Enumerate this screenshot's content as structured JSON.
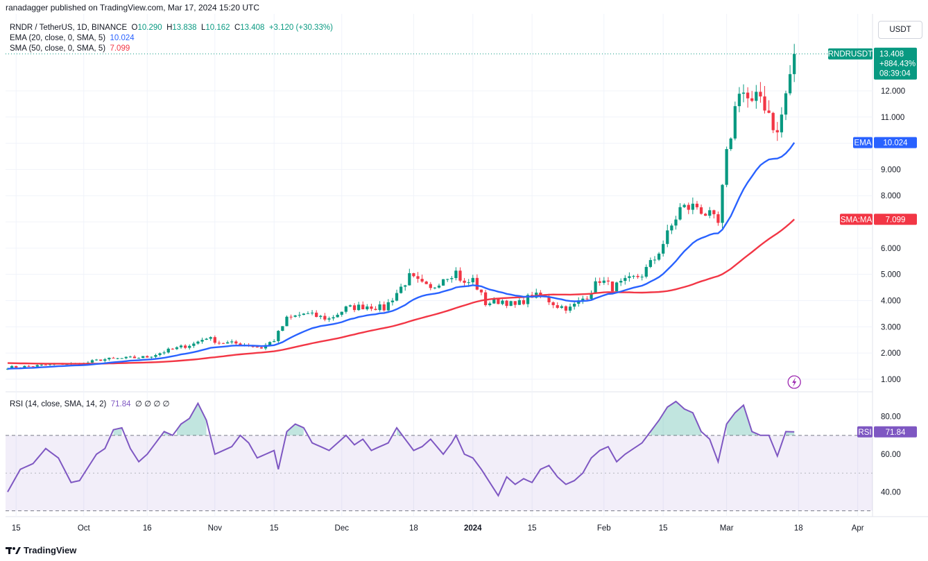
{
  "header": {
    "published": "ranadagger published on TradingView.com, Mar 17, 2024 15:20 UTC",
    "currency_button": "USDT"
  },
  "legend": {
    "symbol": "RNDR / TetherUS, 1D, BINANCE",
    "open_label": "O",
    "open": "10.290",
    "high_label": "H",
    "high": "13.838",
    "low_label": "L",
    "low": "10.162",
    "close_label": "C",
    "close": "13.408",
    "change": "+3.120 (+30.33%)",
    "ema_label": "EMA (20, close, 0, SMA, 5)",
    "ema_value": "10.024",
    "sma_label": "SMA (50, close, 0, SMA, 5)",
    "sma_value": "7.099",
    "rsi_label": "RSI (14, close, SMA, 14, 2)",
    "rsi_value": "71.84",
    "rsi_extra": "∅ ∅ ∅ ∅"
  },
  "price_tags": {
    "symbol_tag": "RNDRUSDT",
    "last_price": "13.408",
    "last_change": "+884.43%",
    "countdown": "08:39:04",
    "ema_tag": "EMA",
    "ema_value": "10.024",
    "sma_tag": "SMA:MA",
    "sma_value": "7.099",
    "rsi_tag": "RSI",
    "rsi_value": "71.84"
  },
  "footer": {
    "brand": "TradingView"
  },
  "colors": {
    "up": "#089981",
    "down": "#f23645",
    "ema": "#2962ff",
    "sma": "#f23645",
    "rsi": "#7e57c2"
  },
  "chart_data": {
    "type": "candlestick",
    "price_axis": {
      "min": 0.6,
      "max": 14.3,
      "ticks": [
        "1.000",
        "2.000",
        "3.000",
        "4.000",
        "5.000",
        "6.000",
        "7.000",
        "8.000",
        "9.000",
        "10.000",
        "11.000",
        "12.000"
      ]
    },
    "rsi_axis": {
      "min": 28,
      "max": 92,
      "ticks": [
        "40.00",
        "60.00",
        "80.00"
      ],
      "bands": [
        30,
        50,
        70
      ]
    },
    "x_ticks": [
      {
        "label": "15",
        "bar": 2
      },
      {
        "label": "Oct",
        "bar": 18
      },
      {
        "label": "16",
        "bar": 33
      },
      {
        "label": "Nov",
        "bar": 49
      },
      {
        "label": "15",
        "bar": 63
      },
      {
        "label": "Dec",
        "bar": 79
      },
      {
        "label": "18",
        "bar": 96
      },
      {
        "label": "2024",
        "bar": 110
      },
      {
        "label": "15",
        "bar": 124
      },
      {
        "label": "Feb",
        "bar": 141
      },
      {
        "label": "15",
        "bar": 155
      },
      {
        "label": "Mar",
        "bar": 170
      },
      {
        "label": "18",
        "bar": 187
      },
      {
        "label": "Apr",
        "bar": 201
      }
    ],
    "bars": 187,
    "close_anchors": [
      [
        0,
        1.45
      ],
      [
        6,
        1.5
      ],
      [
        12,
        1.58
      ],
      [
        18,
        1.6
      ],
      [
        22,
        1.75
      ],
      [
        28,
        1.8
      ],
      [
        33,
        1.85
      ],
      [
        38,
        2.1
      ],
      [
        44,
        2.35
      ],
      [
        47,
        2.6
      ],
      [
        50,
        2.4
      ],
      [
        55,
        2.35
      ],
      [
        60,
        2.2
      ],
      [
        63,
        2.5
      ],
      [
        66,
        3.3
      ],
      [
        70,
        3.5
      ],
      [
        76,
        3.3
      ],
      [
        80,
        3.7
      ],
      [
        85,
        3.8
      ],
      [
        89,
        3.7
      ],
      [
        92,
        4.3
      ],
      [
        95,
        4.9
      ],
      [
        100,
        4.4
      ],
      [
        103,
        4.9
      ],
      [
        106,
        5.1
      ],
      [
        108,
        4.6
      ],
      [
        110,
        4.8
      ],
      [
        113,
        3.9
      ],
      [
        117,
        4.0
      ],
      [
        120,
        3.8
      ],
      [
        124,
        4.2
      ],
      [
        127,
        4.1
      ],
      [
        130,
        3.8
      ],
      [
        133,
        3.7
      ],
      [
        137,
        4.2
      ],
      [
        140,
        4.8
      ],
      [
        143,
        4.5
      ],
      [
        146,
        4.7
      ],
      [
        150,
        5.0
      ],
      [
        153,
        5.6
      ],
      [
        156,
        6.5
      ],
      [
        159,
        7.5
      ],
      [
        163,
        7.6
      ],
      [
        166,
        7.2
      ],
      [
        168,
        6.9
      ],
      [
        170,
        9.5
      ],
      [
        173,
        12.2
      ],
      [
        176,
        11.4
      ],
      [
        178,
        11.8
      ],
      [
        180,
        11.2
      ],
      [
        182,
        10.3
      ],
      [
        186,
        13.408
      ]
    ],
    "special_candles": [
      {
        "bar": 167,
        "low": 5.85
      },
      {
        "bar": 169,
        "open": 6.9,
        "close": 9.5,
        "high": 9.8,
        "low": 6.7
      },
      {
        "bar": 182,
        "open": 11.6,
        "close": 10.29,
        "high": 11.9,
        "low": 9.95
      },
      {
        "bar": 186,
        "open": 10.29,
        "high": 13.838,
        "low": 10.162,
        "close": 13.408
      }
    ],
    "ema_period": 20,
    "sma_period": 50,
    "sma_prefill": 1.62,
    "ema_last": 10.024,
    "sma_last": 7.099,
    "rsi_anchors": [
      [
        0,
        40
      ],
      [
        3,
        52
      ],
      [
        6,
        55
      ],
      [
        9,
        63
      ],
      [
        12,
        58
      ],
      [
        15,
        45
      ],
      [
        17,
        46
      ],
      [
        19,
        53
      ],
      [
        21,
        60
      ],
      [
        23,
        63
      ],
      [
        25,
        73
      ],
      [
        27,
        74
      ],
      [
        29,
        63
      ],
      [
        31,
        56
      ],
      [
        33,
        60
      ],
      [
        35,
        66
      ],
      [
        37,
        72
      ],
      [
        39,
        70
      ],
      [
        41,
        76
      ],
      [
        43,
        79
      ],
      [
        45,
        87
      ],
      [
        47,
        78
      ],
      [
        49,
        60
      ],
      [
        51,
        62
      ],
      [
        53,
        64
      ],
      [
        55,
        70
      ],
      [
        57,
        66
      ],
      [
        59,
        58
      ],
      [
        61,
        60
      ],
      [
        63,
        62
      ],
      [
        64,
        52
      ],
      [
        66,
        72
      ],
      [
        68,
        76
      ],
      [
        70,
        74
      ],
      [
        72,
        66
      ],
      [
        74,
        64
      ],
      [
        76,
        62
      ],
      [
        78,
        66
      ],
      [
        80,
        70
      ],
      [
        82,
        65
      ],
      [
        84,
        68
      ],
      [
        86,
        62
      ],
      [
        88,
        64
      ],
      [
        90,
        66
      ],
      [
        92,
        74
      ],
      [
        94,
        68
      ],
      [
        96,
        62
      ],
      [
        98,
        64
      ],
      [
        100,
        68
      ],
      [
        103,
        60
      ],
      [
        105,
        66
      ],
      [
        106,
        70
      ],
      [
        108,
        60
      ],
      [
        110,
        58
      ],
      [
        112,
        52
      ],
      [
        114,
        45
      ],
      [
        116,
        38
      ],
      [
        118,
        48
      ],
      [
        120,
        44
      ],
      [
        122,
        47
      ],
      [
        124,
        45
      ],
      [
        126,
        52
      ],
      [
        128,
        54
      ],
      [
        130,
        48
      ],
      [
        132,
        44
      ],
      [
        134,
        46
      ],
      [
        136,
        50
      ],
      [
        138,
        58
      ],
      [
        140,
        62
      ],
      [
        142,
        64
      ],
      [
        144,
        56
      ],
      [
        146,
        60
      ],
      [
        148,
        63
      ],
      [
        150,
        66
      ],
      [
        152,
        72
      ],
      [
        154,
        78
      ],
      [
        156,
        85
      ],
      [
        158,
        88
      ],
      [
        160,
        84
      ],
      [
        162,
        82
      ],
      [
        164,
        72
      ],
      [
        166,
        68
      ],
      [
        168,
        56
      ],
      [
        170,
        76
      ],
      [
        172,
        82
      ],
      [
        174,
        86
      ],
      [
        176,
        72
      ],
      [
        178,
        70
      ],
      [
        180,
        70
      ],
      [
        182,
        59
      ],
      [
        184,
        72
      ],
      [
        186,
        71.84
      ]
    ]
  }
}
